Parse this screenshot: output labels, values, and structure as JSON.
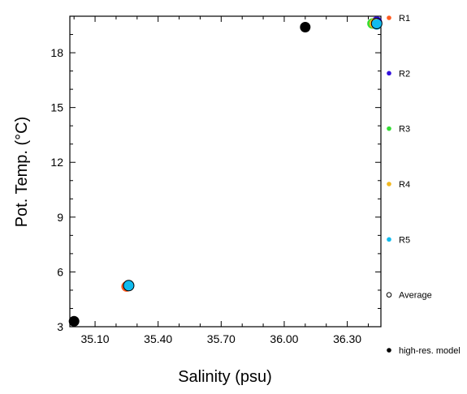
{
  "chart_data": {
    "type": "scatter",
    "xlabel": "Salinity (psu)",
    "ylabel": "Pot. Temp. (°C)",
    "xlim": [
      34.98,
      36.46
    ],
    "ylim": [
      3.0,
      20.0
    ],
    "x_ticks": [
      35.1,
      35.4,
      35.7,
      36.0,
      36.3
    ],
    "x_tick_labels": [
      "35.10",
      "35.40",
      "35.70",
      "36.00",
      "36.30"
    ],
    "y_ticks": [
      3,
      6,
      9,
      12,
      15,
      18
    ],
    "y_tick_labels": [
      "3",
      "6",
      "9",
      "12",
      "15",
      "18"
    ],
    "legend_position": "right",
    "series": [
      {
        "name": "R1",
        "color": "#ff5a1f",
        "marker": "filled-circle",
        "points": [
          [
            35.25,
            5.2
          ],
          [
            36.43,
            19.6
          ]
        ]
      },
      {
        "name": "R2",
        "color": "#3311dd",
        "marker": "filled-circle",
        "points": [
          [
            35.26,
            5.25
          ],
          [
            36.44,
            19.7
          ]
        ]
      },
      {
        "name": "R3",
        "color": "#33dd33",
        "marker": "filled-circle",
        "points": [
          [
            35.26,
            5.25
          ],
          [
            36.42,
            19.6
          ]
        ]
      },
      {
        "name": "R4",
        "color": "#f2b820",
        "marker": "filled-circle",
        "points": [
          [
            35.26,
            5.25
          ],
          [
            36.43,
            19.6
          ]
        ]
      },
      {
        "name": "R5",
        "color": "#11bbee",
        "marker": "filled-circle",
        "points": [
          [
            35.26,
            5.25
          ],
          [
            36.44,
            19.55
          ]
        ]
      },
      {
        "name": "Average",
        "color": "#000000",
        "marker": "open-circle",
        "points": [
          [
            35.26,
            5.25
          ],
          [
            36.44,
            19.6
          ]
        ]
      },
      {
        "name": "high-res. model",
        "color": "#000000",
        "marker": "filled-circle",
        "points": [
          [
            35.0,
            3.3
          ],
          [
            36.1,
            19.4
          ]
        ]
      }
    ]
  }
}
